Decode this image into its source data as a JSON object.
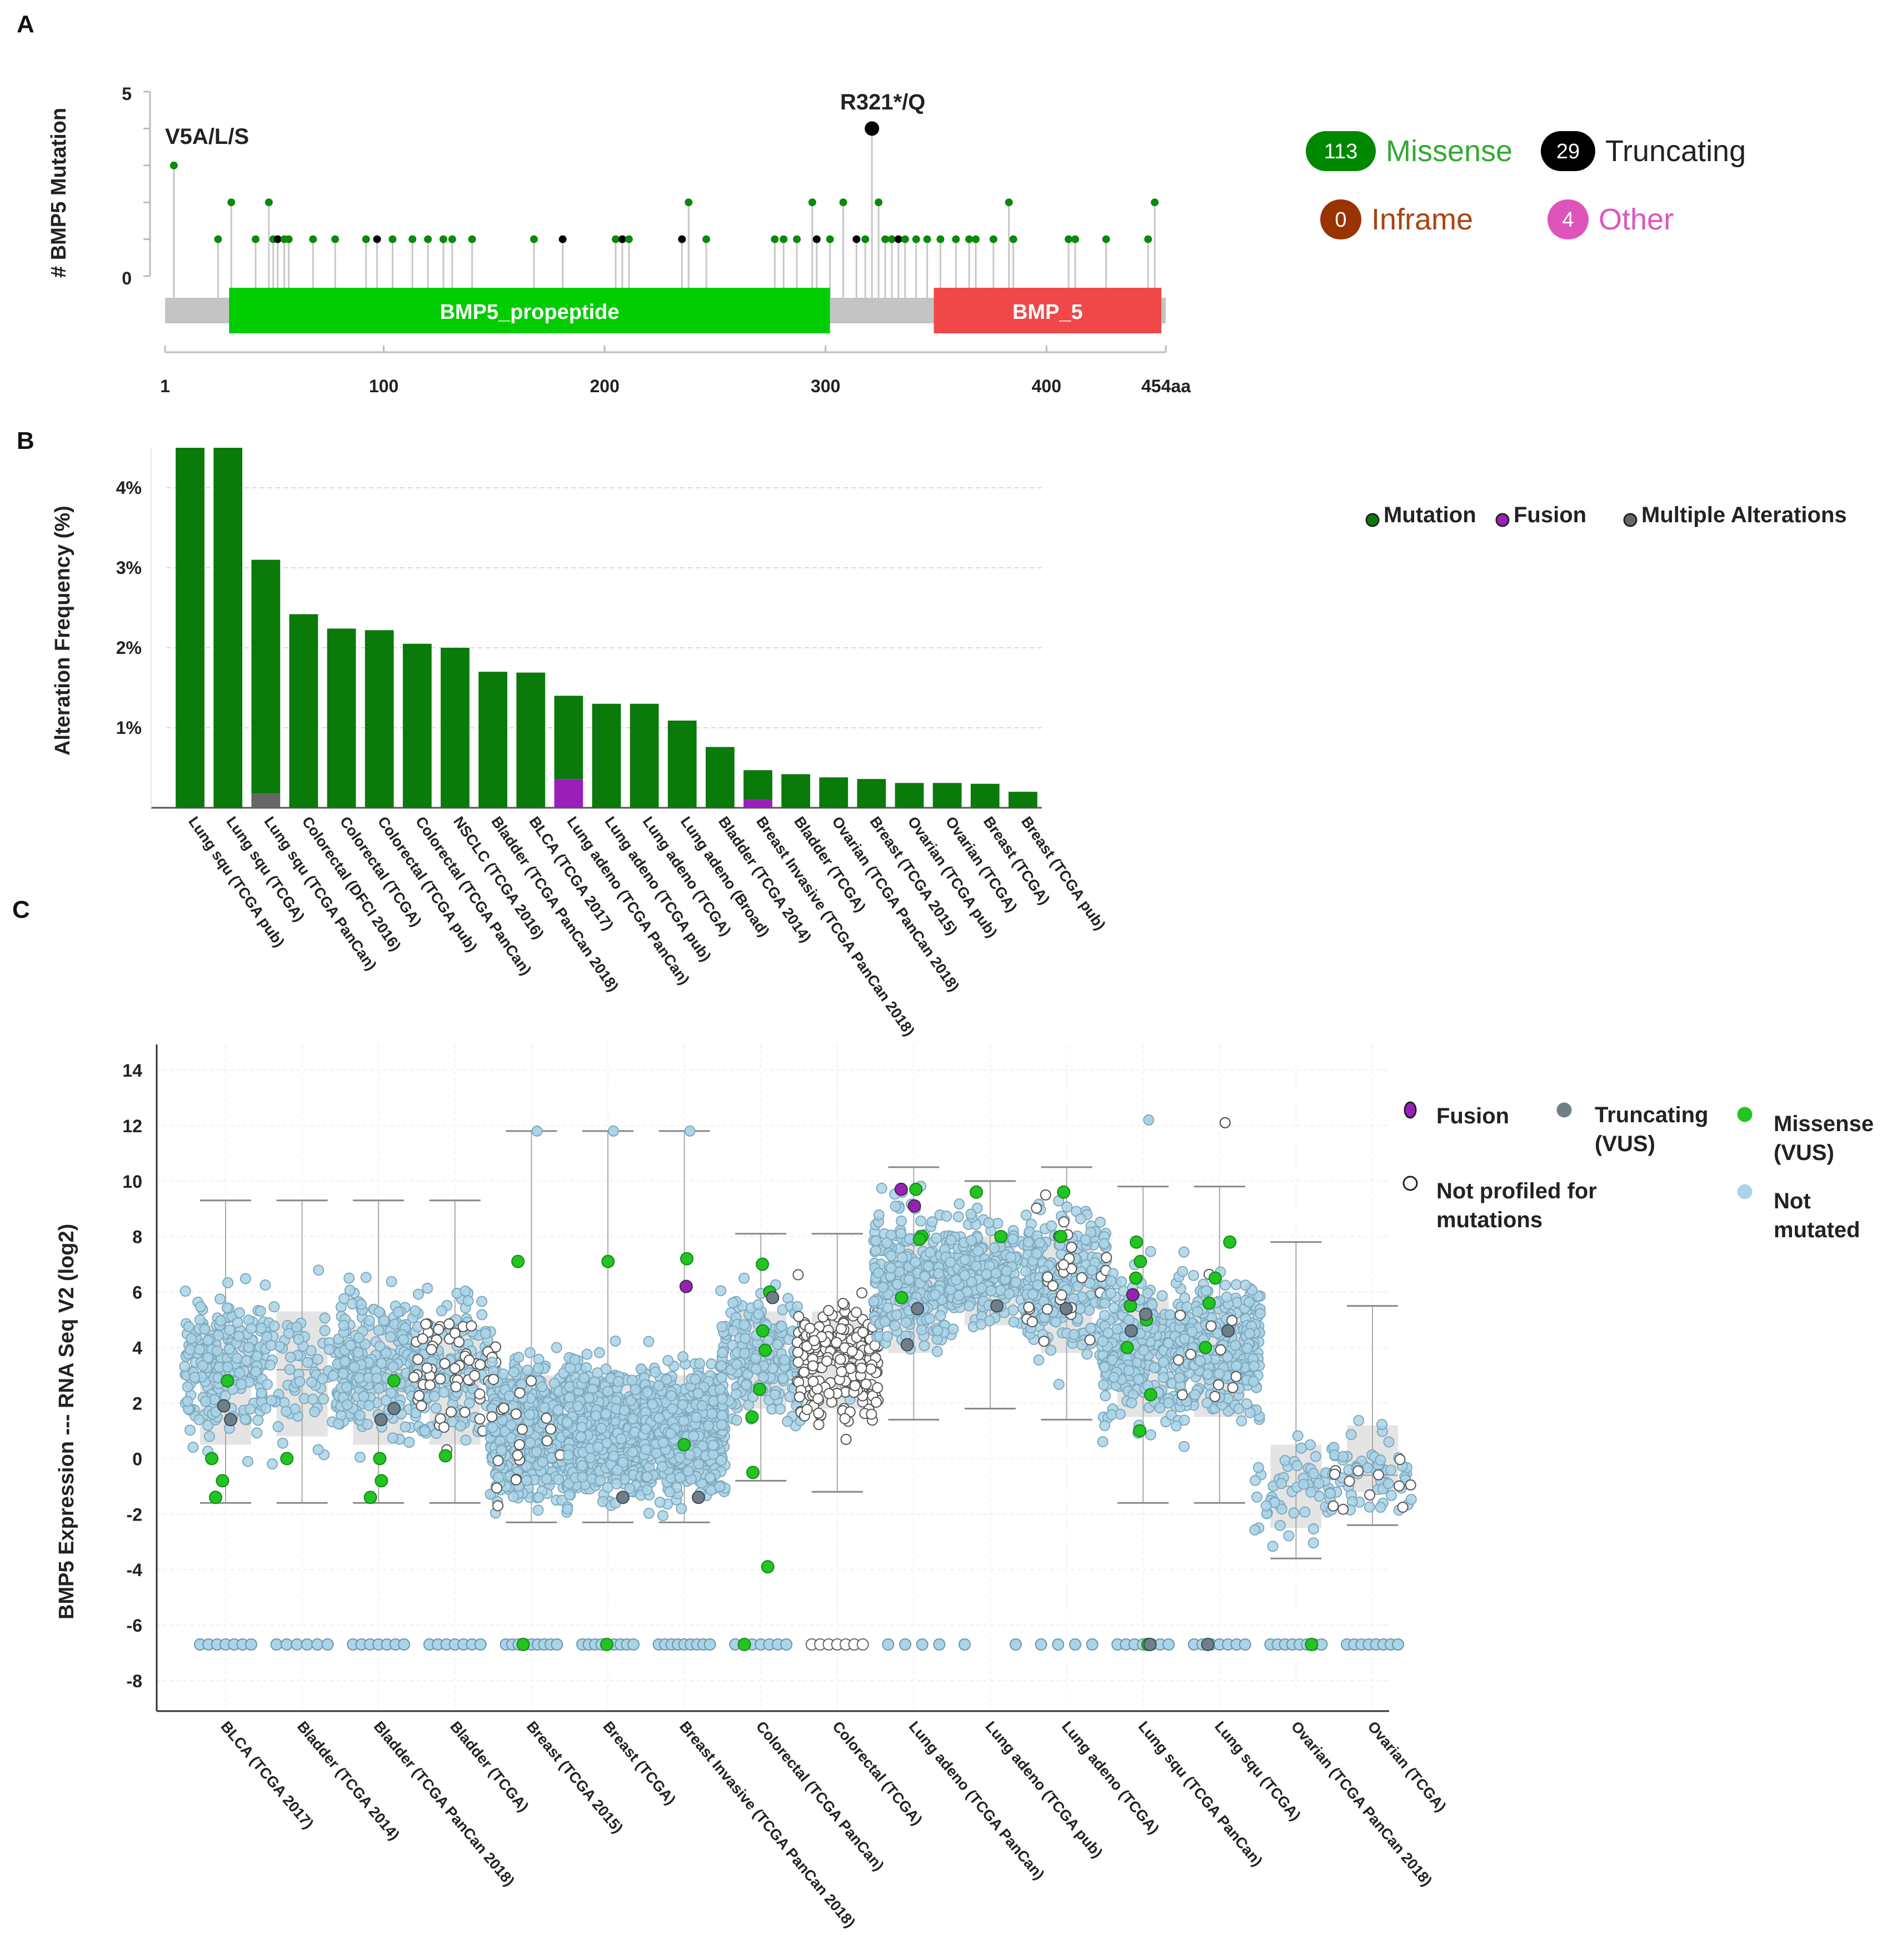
{
  "panel_labels": [
    "A",
    "B",
    "C"
  ],
  "chart_data": [
    {
      "type": "lollipop",
      "panel": "A",
      "ylabel": "# BMP5 Mutation",
      "y_ticks": [
        "5",
        "0"
      ],
      "ylim": [
        0,
        5
      ],
      "xlim": [
        1,
        454
      ],
      "x_ticks": [
        "1",
        "100",
        "200",
        "300",
        "400",
        "454aa"
      ],
      "x_tick_values": [
        1,
        100,
        200,
        300,
        400,
        454
      ],
      "domains": [
        {
          "name": "BMP5_propeptide",
          "start": 30,
          "end": 302,
          "color": "#00cc00"
        },
        {
          "name": "BMP_5",
          "start": 349,
          "end": 452,
          "color": "#f04848"
        }
      ],
      "annotations": [
        {
          "label": "V5A/L/S",
          "pos": 5,
          "count": 3
        },
        {
          "label": "R321*/Q",
          "pos": 321,
          "count": 4
        }
      ],
      "legend": [
        {
          "count": "113",
          "label": "Missense",
          "color": "#008800",
          "text_color": "#33aa33"
        },
        {
          "count": "29",
          "label": "Truncating",
          "color": "#000000",
          "text_color": "#222222"
        },
        {
          "count": "0",
          "label": "Inframe",
          "color": "#993300",
          "text_color": "#aa4411"
        },
        {
          "count": "4",
          "label": "Other",
          "color": "#dd55bb",
          "text_color": "#dd55bb"
        }
      ],
      "mutations": [
        {
          "pos": 5,
          "count": 3,
          "type": "missense"
        },
        {
          "pos": 25,
          "count": 1,
          "type": "missense"
        },
        {
          "pos": 31,
          "count": 2,
          "type": "missense"
        },
        {
          "pos": 42,
          "count": 1,
          "type": "missense"
        },
        {
          "pos": 48,
          "count": 2,
          "type": "missense"
        },
        {
          "pos": 50,
          "count": 1,
          "type": "missense"
        },
        {
          "pos": 52,
          "count": 1,
          "type": "truncating"
        },
        {
          "pos": 55,
          "count": 1,
          "type": "missense"
        },
        {
          "pos": 57,
          "count": 1,
          "type": "missense"
        },
        {
          "pos": 68,
          "count": 1,
          "type": "missense"
        },
        {
          "pos": 78,
          "count": 1,
          "type": "missense"
        },
        {
          "pos": 92,
          "count": 1,
          "type": "missense"
        },
        {
          "pos": 97,
          "count": 1,
          "type": "truncating"
        },
        {
          "pos": 104,
          "count": 1,
          "type": "missense"
        },
        {
          "pos": 113,
          "count": 1,
          "type": "missense"
        },
        {
          "pos": 120,
          "count": 1,
          "type": "missense"
        },
        {
          "pos": 127,
          "count": 1,
          "type": "missense"
        },
        {
          "pos": 131,
          "count": 1,
          "type": "missense"
        },
        {
          "pos": 140,
          "count": 1,
          "type": "missense"
        },
        {
          "pos": 168,
          "count": 1,
          "type": "missense"
        },
        {
          "pos": 181,
          "count": 1,
          "type": "truncating"
        },
        {
          "pos": 205,
          "count": 1,
          "type": "missense"
        },
        {
          "pos": 208,
          "count": 1,
          "type": "truncating"
        },
        {
          "pos": 211,
          "count": 1,
          "type": "missense"
        },
        {
          "pos": 235,
          "count": 1,
          "type": "truncating"
        },
        {
          "pos": 238,
          "count": 2,
          "type": "missense"
        },
        {
          "pos": 246,
          "count": 1,
          "type": "missense"
        },
        {
          "pos": 277,
          "count": 1,
          "type": "missense"
        },
        {
          "pos": 281,
          "count": 1,
          "type": "missense"
        },
        {
          "pos": 287,
          "count": 1,
          "type": "missense"
        },
        {
          "pos": 294,
          "count": 2,
          "type": "missense"
        },
        {
          "pos": 296,
          "count": 1,
          "type": "truncating"
        },
        {
          "pos": 302,
          "count": 1,
          "type": "missense"
        },
        {
          "pos": 308,
          "count": 2,
          "type": "missense"
        },
        {
          "pos": 314,
          "count": 1,
          "type": "truncating"
        },
        {
          "pos": 318,
          "count": 1,
          "type": "missense"
        },
        {
          "pos": 321,
          "count": 4,
          "type": "truncating"
        },
        {
          "pos": 324,
          "count": 2,
          "type": "missense"
        },
        {
          "pos": 327,
          "count": 1,
          "type": "missense"
        },
        {
          "pos": 330,
          "count": 1,
          "type": "missense"
        },
        {
          "pos": 333,
          "count": 1,
          "type": "truncating"
        },
        {
          "pos": 336,
          "count": 1,
          "type": "missense"
        },
        {
          "pos": 341,
          "count": 1,
          "type": "missense"
        },
        {
          "pos": 346,
          "count": 1,
          "type": "missense"
        },
        {
          "pos": 352,
          "count": 1,
          "type": "missense"
        },
        {
          "pos": 359,
          "count": 1,
          "type": "missense"
        },
        {
          "pos": 365,
          "count": 1,
          "type": "missense"
        },
        {
          "pos": 368,
          "count": 1,
          "type": "missense"
        },
        {
          "pos": 376,
          "count": 1,
          "type": "missense"
        },
        {
          "pos": 383,
          "count": 2,
          "type": "missense"
        },
        {
          "pos": 385,
          "count": 1,
          "type": "missense"
        },
        {
          "pos": 410,
          "count": 1,
          "type": "missense"
        },
        {
          "pos": 413,
          "count": 1,
          "type": "missense"
        },
        {
          "pos": 427,
          "count": 1,
          "type": "missense"
        },
        {
          "pos": 446,
          "count": 1,
          "type": "missense"
        },
        {
          "pos": 449,
          "count": 2,
          "type": "missense"
        }
      ]
    },
    {
      "type": "bar",
      "panel": "B",
      "ylabel": "Alteration Frequency (%)",
      "ylim": [
        0,
        4.5
      ],
      "y_ticks": [
        "1%",
        "2%",
        "3%",
        "4%"
      ],
      "y_tick_values": [
        1,
        2,
        3,
        4
      ],
      "legend": [
        {
          "label": "Mutation",
          "color": "#0a7a0a"
        },
        {
          "label": "Fusion",
          "color": "#9a1fb8"
        },
        {
          "label": "Multiple Alterations",
          "color": "#666666"
        }
      ],
      "categories": [
        "Lung squ (TCGA pub)",
        "Lung squ (TCGA)",
        "Lung squ (TCGA PanCan)",
        "Colorectal (DFCI 2016)",
        "Colorectal (TCGA)",
        "Colorectal (TCGA pub)",
        "Colorectal (TCGA PanCan)",
        "NSCLC (TCGA 2016)",
        "Bladder (TCGA PanCan 2018)",
        "BLCA (TCGA 2017)",
        "Lung adeno (TCGA PanCan)",
        "Lung adeno (TCGA pub)",
        "Lung adeno (TCGA)",
        "Lung adeno (Broad)",
        "Bladder (TCGA 2014)",
        "Breast Invasive (TCGA PanCan 2018)",
        "Bladder (TCGA)",
        "Ovarian (TCGA PanCan 2018)",
        "Breast (TCGA 2015)",
        "Ovarian (TCGA pub)",
        "Ovarian (TCGA)",
        "Breast (TCGA)",
        "Breast (TCGA pub)"
      ],
      "series": [
        {
          "name": "Mutation",
          "values": [
            4.5,
            4.5,
            2.92,
            2.42,
            2.24,
            2.22,
            2.05,
            2.0,
            1.7,
            1.69,
            1.04,
            1.3,
            1.3,
            1.09,
            0.76,
            0.37,
            0.42,
            0.38,
            0.36,
            0.31,
            0.31,
            0.3,
            0.2
          ]
        },
        {
          "name": "Fusion",
          "values": [
            0,
            0,
            0,
            0,
            0,
            0,
            0,
            0,
            0,
            0,
            0.36,
            0,
            0,
            0,
            0,
            0.1,
            0,
            0,
            0,
            0,
            0,
            0,
            0
          ]
        },
        {
          "name": "Multiple Alterations",
          "values": [
            0,
            0,
            0.18,
            0,
            0,
            0,
            0,
            0,
            0,
            0,
            0,
            0,
            0,
            0,
            0,
            0,
            0,
            0,
            0,
            0,
            0,
            0,
            0
          ]
        }
      ]
    },
    {
      "type": "scatter",
      "panel": "C",
      "ylabel": "BMP5 Expression --- RNA Seq V2 (log2)",
      "ylim": [
        -9,
        15
      ],
      "y_ticks": [
        "14",
        "12",
        "10",
        "8",
        "6",
        "4",
        "2",
        "0",
        "-2",
        "-4",
        "-6",
        "-8"
      ],
      "y_tick_values": [
        14,
        12,
        10,
        8,
        6,
        4,
        2,
        0,
        -2,
        -4,
        -6,
        -8
      ],
      "legend": [
        {
          "label": "Fusion",
          "color": "#9a1fb8",
          "stroke": "#333333"
        },
        {
          "label": "Truncating (VUS)",
          "color": "#6e7f8a",
          "stroke": "#6e7f8a"
        },
        {
          "label": "Missense (VUS)",
          "color": "#22c422",
          "stroke": "#22c422"
        },
        {
          "label": "Not profiled for mutations",
          "color": "#ffffff",
          "stroke": "#222222"
        },
        {
          "label": "Not mutated",
          "color": "#aad4e8",
          "stroke": "#aad4e8"
        }
      ],
      "groups": [
        {
          "name": "BLCA (TCGA 2017)",
          "q1": 0.5,
          "median": 3.3,
          "q3": 4.8,
          "whisker_low": -1.6,
          "whisker_high": 9.3,
          "n": 220,
          "floor_count": 7,
          "missense": [
            2.8,
            0.0,
            -0.8,
            -1.4
          ],
          "truncating": [
            1.9,
            1.4
          ],
          "fusion": [],
          "not_profiled": 0
        },
        {
          "name": "Bladder (TCGA 2014)",
          "q1": 0.8,
          "median": 3.2,
          "q3": 5.3,
          "whisker_low": -1.6,
          "whisker_high": 9.3,
          "n": 90,
          "floor_count": 6,
          "missense": [
            0.0
          ],
          "truncating": [],
          "fusion": [],
          "not_profiled": 0
        },
        {
          "name": "Bladder (TCGA PanCan 2018)",
          "q1": 0.5,
          "median": 3.2,
          "q3": 4.8,
          "whisker_low": -1.6,
          "whisker_high": 9.3,
          "n": 240,
          "floor_count": 7,
          "missense": [
            2.8,
            0.0,
            -0.8,
            -1.4
          ],
          "truncating": [
            1.8,
            1.4
          ],
          "fusion": [],
          "not_profiled": 0
        },
        {
          "name": "Bladder (TCGA)",
          "q1": 0.5,
          "median": 3.2,
          "q3": 4.8,
          "whisker_low": -1.6,
          "whisker_high": 9.3,
          "n": 160,
          "floor_count": 7,
          "missense": [
            0.1
          ],
          "truncating": [],
          "fusion": [],
          "not_profiled": 60
        },
        {
          "name": "Breast (TCGA 2015)",
          "q1": -0.8,
          "median": 1.0,
          "q3": 3.0,
          "whisker_low": -2.3,
          "whisker_high": 11.8,
          "n": 520,
          "floor_count": 9,
          "missense": [
            7.1,
            -6.7
          ],
          "truncating": [],
          "fusion": [],
          "not_profiled": 20
        },
        {
          "name": "Breast (TCGA)",
          "q1": -0.8,
          "median": 1.0,
          "q3": 3.0,
          "whisker_low": -2.3,
          "whisker_high": 11.8,
          "n": 520,
          "floor_count": 9,
          "missense": [
            7.1,
            -6.7
          ],
          "truncating": [
            -1.4
          ],
          "fusion": [],
          "not_profiled": 0
        },
        {
          "name": "Breast Invasive (TCGA PanCan 2018)",
          "q1": -0.8,
          "median": 1.0,
          "q3": 3.0,
          "whisker_low": -2.3,
          "whisker_high": 11.8,
          "n": 520,
          "floor_count": 9,
          "missense": [
            7.2,
            0.5
          ],
          "truncating": [
            -1.4
          ],
          "fusion": [
            6.2
          ],
          "not_profiled": 0
        },
        {
          "name": "Colorectal (TCGA PanCan)",
          "q1": 1.8,
          "median": 3.6,
          "q3": 5.3,
          "whisker_low": -0.8,
          "whisker_high": 8.1,
          "n": 200,
          "floor_count": 7,
          "missense": [
            7.0,
            6.0,
            4.6,
            3.9,
            2.5,
            1.5,
            -0.5,
            -3.9,
            -6.7
          ],
          "truncating": [
            5.8
          ],
          "fusion": [],
          "not_profiled": 0
        },
        {
          "name": "Colorectal (TCGA)",
          "q1": 1.8,
          "median": 3.6,
          "q3": 5.3,
          "whisker_low": -1.2,
          "whisker_high": 8.1,
          "n": 10,
          "floor_count": 7,
          "missense": [],
          "truncating": [],
          "fusion": [],
          "not_profiled": 200
        },
        {
          "name": "Lung adeno (TCGA PanCan)",
          "q1": 3.8,
          "median": 6.5,
          "q3": 7.8,
          "whisker_low": 1.4,
          "whisker_high": 10.5,
          "n": 280,
          "floor_count": 4,
          "missense": [
            9.7,
            8.0,
            7.9,
            5.8
          ],
          "truncating": [
            5.4,
            4.1
          ],
          "fusion": [
            9.1,
            9.7
          ],
          "not_profiled": 0
        },
        {
          "name": "Lung adeno (TCGA pub)",
          "q1": 4.8,
          "median": 6.8,
          "q3": 8.0,
          "whisker_low": 1.8,
          "whisker_high": 10.0,
          "n": 200,
          "floor_count": 2,
          "missense": [
            9.6,
            8.0
          ],
          "truncating": [
            5.5
          ],
          "fusion": [],
          "not_profiled": 0
        },
        {
          "name": "Lung adeno (TCGA)",
          "q1": 3.8,
          "median": 6.5,
          "q3": 8.0,
          "whisker_low": 1.4,
          "whisker_high": 10.5,
          "n": 240,
          "floor_count": 4,
          "missense": [
            9.6,
            8.0
          ],
          "truncating": [
            5.4
          ],
          "fusion": [],
          "not_profiled": 30
        },
        {
          "name": "Lung squ (TCGA PanCan)",
          "q1": 1.5,
          "median": 3.8,
          "q3": 5.8,
          "whisker_low": -1.6,
          "whisker_high": 9.8,
          "n": 280,
          "floor_count": 7,
          "missense": [
            7.8,
            7.1,
            6.5,
            5.5,
            5.0,
            4.0,
            2.3,
            1.0,
            -6.7
          ],
          "truncating": [
            5.2,
            4.6,
            -6.7
          ],
          "fusion": [
            5.9
          ],
          "not_profiled": 0
        },
        {
          "name": "Lung squ (TCGA)",
          "q1": 1.5,
          "median": 4.0,
          "q3": 5.8,
          "whisker_low": -1.6,
          "whisker_high": 9.8,
          "n": 280,
          "floor_count": 7,
          "missense": [
            7.8,
            6.5,
            5.6,
            4.0
          ],
          "truncating": [
            4.6,
            -6.7
          ],
          "fusion": [],
          "not_profiled": 12
        },
        {
          "name": "Ovarian (TCGA PanCan 2018)",
          "q1": -2.5,
          "median": -1.0,
          "q3": 0.5,
          "whisker_low": -3.6,
          "whisker_high": 7.8,
          "n": 60,
          "floor_count": 8,
          "missense": [
            -6.7
          ],
          "truncating": [],
          "fusion": [],
          "not_profiled": 0
        },
        {
          "name": "Ovarian (TCGA)",
          "q1": -1.2,
          "median": -0.6,
          "q3": 1.2,
          "whisker_low": -2.4,
          "whisker_high": 5.5,
          "n": 60,
          "floor_count": 8,
          "missense": [],
          "truncating": [],
          "fusion": [],
          "not_profiled": 12
        }
      ]
    }
  ]
}
